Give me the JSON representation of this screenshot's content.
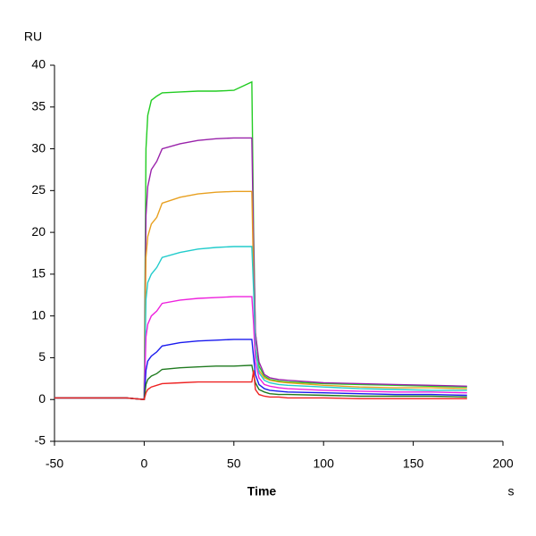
{
  "chart_data": {
    "type": "line",
    "y_label": "RU",
    "x_label": "Time",
    "x_unit": "s",
    "x": [
      -50,
      -30,
      -10,
      0,
      1,
      2,
      4,
      7,
      10,
      20,
      30,
      40,
      50,
      60,
      61,
      62,
      64,
      67,
      70,
      75,
      80,
      100,
      120,
      140,
      160,
      180
    ],
    "series": [
      {
        "color": "#22cc22",
        "values": [
          0.2,
          0.2,
          0.2,
          0,
          30,
          34,
          35.8,
          36.3,
          36.7,
          36.8,
          36.9,
          36.9,
          37,
          38,
          20,
          8,
          4,
          2.8,
          2.4,
          2.2,
          2.1,
          1.9,
          1.8,
          1.7,
          1.6,
          1.5
        ]
      },
      {
        "color": "#9922aa",
        "values": [
          0.2,
          0.2,
          0.2,
          0,
          22,
          25.5,
          27.5,
          28.5,
          30,
          30.6,
          31,
          31.2,
          31.3,
          31.3,
          18,
          8,
          4.5,
          3,
          2.6,
          2.4,
          2.3,
          2,
          1.9,
          1.8,
          1.7,
          1.6
        ]
      },
      {
        "color": "#e8a020",
        "values": [
          0.2,
          0.2,
          0.2,
          0,
          17,
          19.5,
          21,
          21.8,
          23.5,
          24.2,
          24.6,
          24.8,
          24.9,
          24.9,
          14,
          6,
          3.5,
          2.6,
          2.3,
          2.1,
          2,
          1.7,
          1.5,
          1.4,
          1.4,
          1.3
        ]
      },
      {
        "color": "#22cccc",
        "values": [
          0.2,
          0.2,
          0.2,
          0,
          12,
          14,
          15,
          15.8,
          17,
          17.6,
          18,
          18.2,
          18.3,
          18.3,
          13,
          6,
          3.2,
          2.3,
          2,
          1.8,
          1.7,
          1.5,
          1.3,
          1.2,
          1.1,
          1.1
        ]
      },
      {
        "color": "#ee22dd",
        "values": [
          0.2,
          0.2,
          0.2,
          0,
          7.5,
          9,
          10,
          10.6,
          11.5,
          11.9,
          12.1,
          12.2,
          12.3,
          12.3,
          9,
          4.5,
          2.6,
          1.8,
          1.6,
          1.4,
          1.3,
          1.1,
          1,
          0.9,
          0.9,
          0.8
        ]
      },
      {
        "color": "#1a1aee",
        "values": [
          0.2,
          0.2,
          0.2,
          0,
          3.5,
          4.6,
          5.2,
          5.7,
          6.4,
          6.8,
          7,
          7.1,
          7.2,
          7.2,
          5,
          3,
          1.8,
          1.3,
          1.1,
          1,
          0.9,
          0.8,
          0.7,
          0.6,
          0.6,
          0.5
        ]
      },
      {
        "color": "#1f7a1f",
        "values": [
          0.2,
          0.2,
          0.2,
          0,
          1.8,
          2.4,
          2.8,
          3.1,
          3.6,
          3.8,
          3.9,
          4,
          4,
          4.1,
          3,
          2,
          1.2,
          0.9,
          0.7,
          0.6,
          0.6,
          0.5,
          0.4,
          0.4,
          0.4,
          0.3
        ]
      },
      {
        "color": "#ee2222",
        "values": [
          0.2,
          0.2,
          0.2,
          0,
          0.8,
          1.2,
          1.5,
          1.7,
          1.9,
          2,
          2.1,
          2.1,
          2.1,
          2.1,
          3.5,
          1.2,
          0.6,
          0.4,
          0.3,
          0.3,
          0.2,
          0.2,
          0.1,
          0.1,
          0.1,
          0.1
        ]
      }
    ],
    "xlim": [
      -50,
      200
    ],
    "xticks": [
      -50,
      0,
      50,
      100,
      150,
      200
    ],
    "ylim": [
      -5,
      40
    ],
    "yticks": [
      -5,
      0,
      5,
      10,
      15,
      20,
      25,
      30,
      35,
      40
    ]
  }
}
